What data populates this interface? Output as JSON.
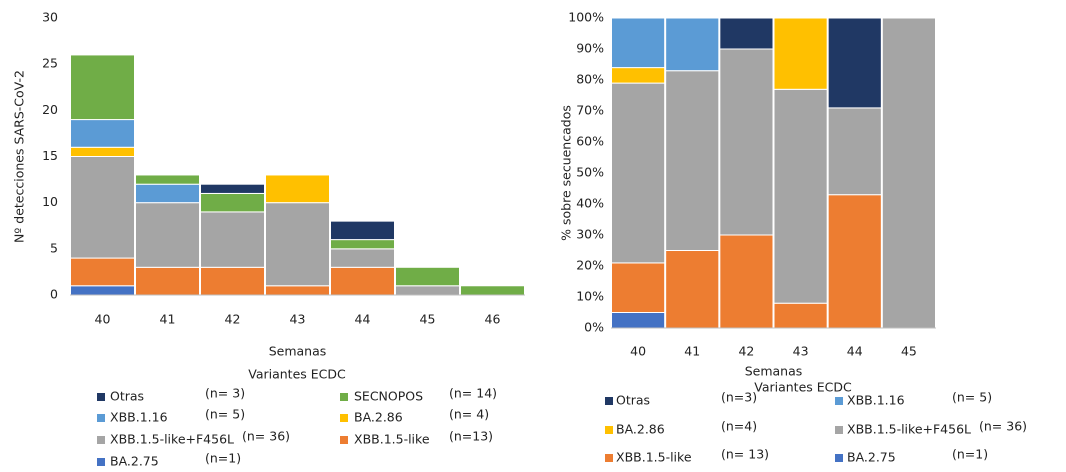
{
  "chart_data": [
    {
      "type": "bar",
      "stacked": true,
      "y_label": "Nº detecciones SARS-CoV-2",
      "x_label": "Semanas",
      "legend_title": "Variantes ECDC",
      "categories": [
        "40",
        "41",
        "42",
        "43",
        "44",
        "45",
        "46"
      ],
      "ylim": [
        0,
        30
      ],
      "yticks": [
        0,
        5,
        10,
        15,
        20,
        25,
        30
      ],
      "grid": false,
      "series": [
        {
          "name": "BA.2.75",
          "count_label": "(n=1)",
          "color": "#4472c4",
          "values": [
            1,
            0,
            0,
            0,
            0,
            0,
            0
          ]
        },
        {
          "name": "XBB.1.5-like",
          "count_label": "(n=13)",
          "color": "#ed7d31",
          "values": [
            3,
            3,
            3,
            1,
            3,
            0,
            0
          ]
        },
        {
          "name": "XBB.1.5-like+F456L",
          "count_label": "(n= 36)",
          "color": "#a5a5a5",
          "values": [
            11,
            7,
            6,
            9,
            2,
            1,
            0
          ]
        },
        {
          "name": "BA.2.86",
          "count_label": "(n= 4)",
          "color": "#ffc000",
          "values": [
            1,
            0,
            0,
            3,
            0,
            0,
            0
          ]
        },
        {
          "name": "XBB.1.16",
          "count_label": "(n= 5)",
          "color": "#5b9bd5",
          "values": [
            3,
            2,
            0,
            0,
            0,
            0,
            0
          ]
        },
        {
          "name": "SECNOPOS",
          "count_label": "(n= 14)",
          "color": "#70ad47",
          "values": [
            7,
            1,
            2,
            0,
            1,
            2,
            1
          ]
        },
        {
          "name": "Otras",
          "count_label": "(n= 3)",
          "color": "#203864",
          "values": [
            0,
            0,
            1,
            0,
            2,
            0,
            0
          ]
        }
      ]
    },
    {
      "type": "bar",
      "stacked": true,
      "y_label": "% sobre secuencados",
      "x_label": "Semanas",
      "legend_title": "Variantes ECDC",
      "categories": [
        "40",
        "41",
        "42",
        "43",
        "44",
        "45"
      ],
      "ylim": [
        0,
        100
      ],
      "yticks": [
        {
          "value": 0,
          "label": "0%"
        },
        {
          "value": 10,
          "label": "10%"
        },
        {
          "value": 20,
          "label": "20%"
        },
        {
          "value": 30,
          "label": "30%"
        },
        {
          "value": 40,
          "label": "40%"
        },
        {
          "value": 50,
          "label": "50%"
        },
        {
          "value": 60,
          "label": "60%"
        },
        {
          "value": 70,
          "label": "70%"
        },
        {
          "value": 80,
          "label": "80%"
        },
        {
          "value": 90,
          "label": "90%"
        },
        {
          "value": 100,
          "label": "100%"
        }
      ],
      "grid": false,
      "series": [
        {
          "name": "BA.2.75",
          "count_label": "(n=1)",
          "color": "#4472c4",
          "values": [
            5,
            0,
            0,
            0,
            0,
            0
          ]
        },
        {
          "name": "XBB.1.5-like",
          "count_label": "(n= 13)",
          "color": "#ed7d31",
          "values": [
            16,
            25,
            30,
            8,
            43,
            0
          ]
        },
        {
          "name": "XBB.1.5-like+F456L",
          "count_label": "(n= 36)",
          "color": "#a5a5a5",
          "values": [
            58,
            58,
            60,
            69,
            28,
            100
          ]
        },
        {
          "name": "BA.2.86",
          "count_label": "(n=4)",
          "color": "#ffc000",
          "values": [
            5,
            0,
            0,
            23,
            0,
            0
          ]
        },
        {
          "name": "XBB.1.16",
          "count_label": "(n= 5)",
          "color": "#5b9bd5",
          "values": [
            16,
            17,
            0,
            0,
            0,
            0
          ]
        },
        {
          "name": "Otras",
          "count_label": "(n=3)",
          "color": "#203864",
          "values": [
            0,
            0,
            10,
            0,
            29,
            0
          ]
        }
      ]
    }
  ]
}
